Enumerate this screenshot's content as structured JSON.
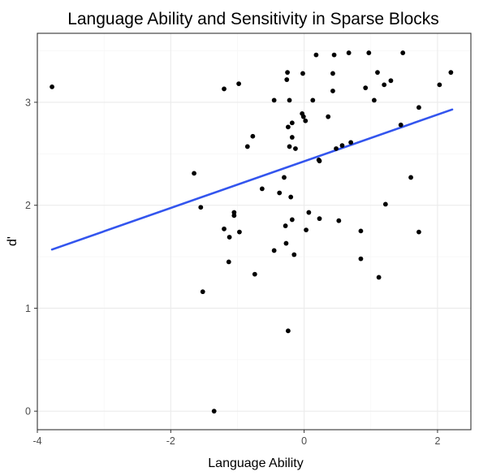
{
  "chart_data": {
    "type": "scatter",
    "title": "Language Ability and Sensitivity in Sparse Blocks",
    "xlabel": "Language Ability",
    "ylabel": "d'",
    "xlim": [
      -4.0,
      2.5
    ],
    "ylim": [
      -0.18,
      3.67
    ],
    "x_ticks": [
      -4,
      -2,
      0,
      2
    ],
    "x_tick_labels": [
      "-4",
      "-2",
      "0",
      "2"
    ],
    "y_ticks": [
      0,
      1,
      2,
      3
    ],
    "y_tick_labels": [
      "0",
      "1",
      "2",
      "3"
    ],
    "grid": true,
    "point_color": "#000000",
    "trend_line": {
      "x": [
        -3.78,
        2.22
      ],
      "y": [
        1.57,
        2.93
      ],
      "color": "#3355ee"
    },
    "series": [
      {
        "points": [
          [
            -3.78,
            3.15
          ],
          [
            -1.65,
            2.31
          ],
          [
            -1.55,
            1.98
          ],
          [
            -1.52,
            1.16
          ],
          [
            -1.35,
            0.0
          ],
          [
            -1.2,
            3.13
          ],
          [
            -1.2,
            1.77
          ],
          [
            -1.12,
            1.69
          ],
          [
            -1.13,
            1.45
          ],
          [
            -1.05,
            1.93
          ],
          [
            -1.05,
            1.9
          ],
          [
            -0.98,
            3.18
          ],
          [
            -0.97,
            1.74
          ],
          [
            -0.85,
            2.57
          ],
          [
            -0.77,
            2.67
          ],
          [
            -0.74,
            1.33
          ],
          [
            -0.63,
            2.16
          ],
          [
            -0.45,
            3.02
          ],
          [
            -0.45,
            1.56
          ],
          [
            -0.37,
            2.12
          ],
          [
            -0.3,
            2.27
          ],
          [
            -0.28,
            1.8
          ],
          [
            -0.27,
            1.63
          ],
          [
            -0.26,
            3.22
          ],
          [
            -0.25,
            3.29
          ],
          [
            -0.24,
            2.76
          ],
          [
            -0.22,
            2.57
          ],
          [
            -0.22,
            3.02
          ],
          [
            -0.2,
            2.08
          ],
          [
            -0.18,
            2.8
          ],
          [
            -0.18,
            2.66
          ],
          [
            -0.18,
            1.86
          ],
          [
            -0.15,
            1.52
          ],
          [
            -0.13,
            2.55
          ],
          [
            -0.24,
            0.78
          ],
          [
            -0.03,
            2.89
          ],
          [
            -0.02,
            3.28
          ],
          [
            -0.01,
            2.86
          ],
          [
            0.02,
            2.82
          ],
          [
            0.03,
            1.76
          ],
          [
            0.07,
            1.93
          ],
          [
            0.13,
            3.02
          ],
          [
            0.18,
            3.46
          ],
          [
            0.22,
            2.44
          ],
          [
            0.23,
            2.43
          ],
          [
            0.23,
            1.87
          ],
          [
            0.36,
            2.86
          ],
          [
            0.43,
            3.28
          ],
          [
            0.43,
            3.11
          ],
          [
            0.45,
            3.46
          ],
          [
            0.48,
            2.55
          ],
          [
            0.52,
            1.85
          ],
          [
            0.57,
            2.58
          ],
          [
            0.67,
            3.48
          ],
          [
            0.7,
            2.61
          ],
          [
            0.85,
            1.75
          ],
          [
            0.85,
            1.48
          ],
          [
            0.92,
            3.14
          ],
          [
            0.97,
            3.48
          ],
          [
            1.05,
            3.02
          ],
          [
            1.1,
            3.29
          ],
          [
            1.12,
            1.3
          ],
          [
            1.2,
            3.17
          ],
          [
            1.22,
            2.01
          ],
          [
            1.3,
            3.21
          ],
          [
            1.45,
            2.78
          ],
          [
            1.48,
            3.48
          ],
          [
            1.6,
            2.27
          ],
          [
            1.72,
            2.95
          ],
          [
            1.72,
            1.74
          ],
          [
            2.03,
            3.17
          ],
          [
            2.2,
            3.29
          ]
        ]
      }
    ]
  }
}
